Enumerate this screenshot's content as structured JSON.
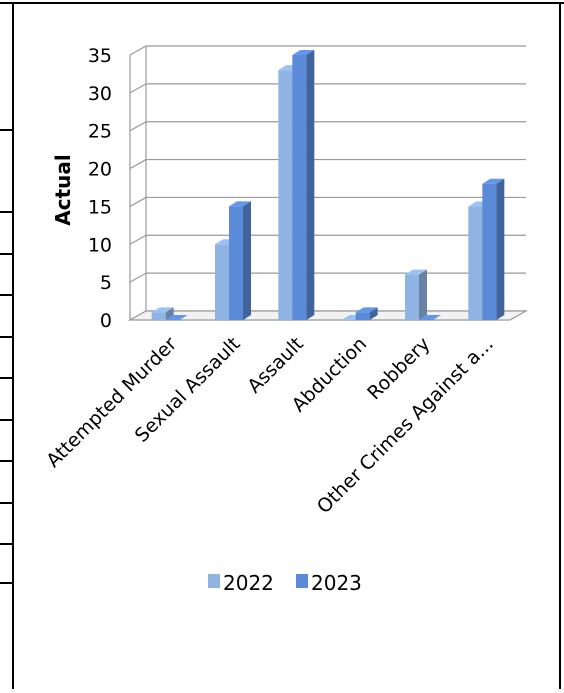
{
  "chart_data": {
    "type": "bar",
    "title": "",
    "xlabel": "",
    "ylabel": "Actual",
    "ylim": [
      0,
      35
    ],
    "yticks": [
      0,
      5,
      10,
      15,
      20,
      25,
      30,
      35
    ],
    "grid": true,
    "legend": "bottom",
    "categories": [
      "Attempted Murder",
      "Sexual Assault",
      "Assault",
      "Abduction",
      "Robbery",
      "Other Crimes Against a..."
    ],
    "series": [
      {
        "name": "2022",
        "color": "#8fb4e3",
        "values": [
          1,
          10,
          33,
          0,
          6,
          15
        ]
      },
      {
        "name": "2023",
        "color": "#5b8bd8",
        "values": [
          0,
          15,
          35,
          1,
          0,
          18
        ]
      }
    ]
  }
}
